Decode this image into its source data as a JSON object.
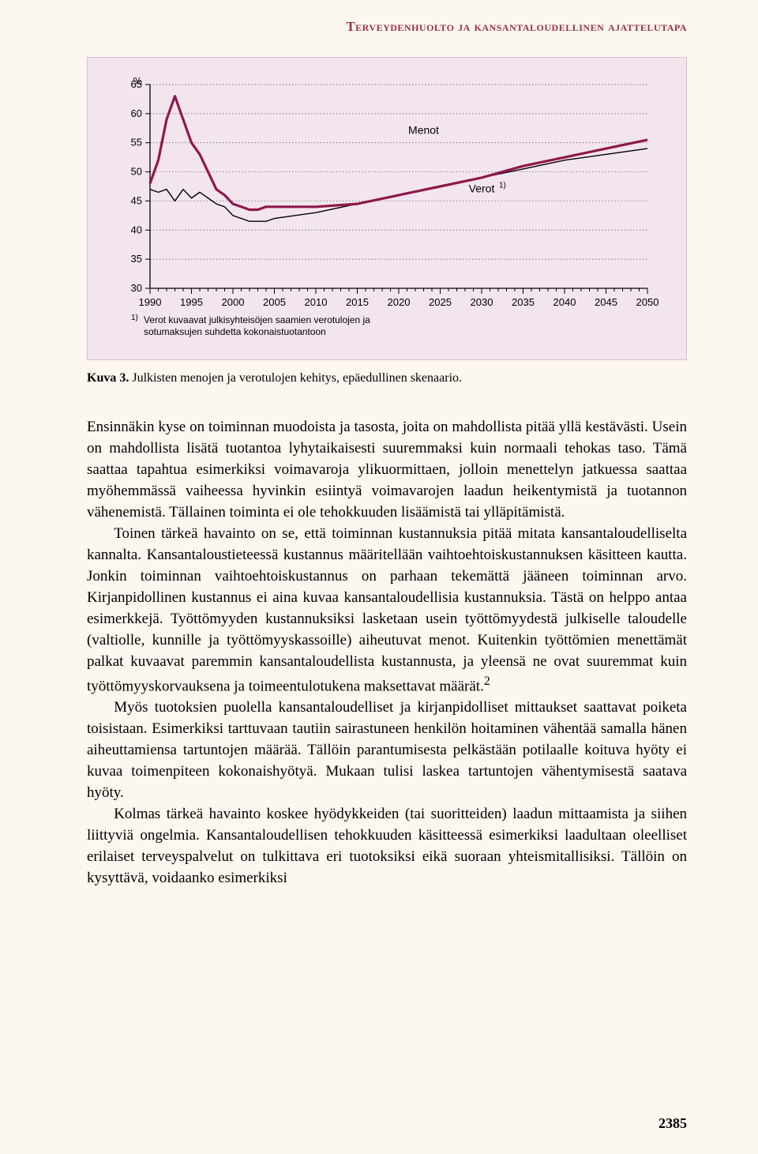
{
  "running_head": "Terveydenhuolto ja kansantaloudellinen ajattelutapa",
  "figure": {
    "type": "line",
    "y_unit": "%",
    "y_ticks": [
      30,
      35,
      40,
      45,
      50,
      55,
      60,
      65
    ],
    "ylim": [
      30,
      65
    ],
    "x_ticks": [
      "1990",
      "1995",
      "2000",
      "2005",
      "2010",
      "2015",
      "2020",
      "2025",
      "2030",
      "2035",
      "2040",
      "2045",
      "2050"
    ],
    "x_years": [
      1990,
      1991,
      1992,
      1993,
      1994,
      1995,
      1996,
      1997,
      1998,
      1999,
      2000,
      2001,
      2002,
      2003,
      2004,
      2005,
      2010,
      2015,
      2020,
      2025,
      2030,
      2035,
      2040,
      2045,
      2050
    ],
    "series": {
      "menot": {
        "label": "Menot",
        "color": "#8f184d",
        "width": 3.2,
        "y": [
          48,
          52,
          59,
          63,
          59,
          55,
          53,
          50,
          47,
          46,
          44.5,
          44,
          43.5,
          43.5,
          44,
          44,
          44,
          44.5,
          46,
          47.5,
          49,
          51,
          52.5,
          54,
          55.5
        ]
      },
      "verot": {
        "label": "Verot",
        "superscript": "1)",
        "color": "#000000",
        "width": 1.4,
        "y": [
          47,
          46.5,
          47,
          45,
          47,
          45.5,
          46.5,
          45.5,
          44.5,
          44,
          42.5,
          42,
          41.5,
          41.5,
          41.5,
          42,
          43,
          44.5,
          46,
          47.5,
          49,
          50.5,
          52,
          53,
          54
        ]
      }
    },
    "colors": {
      "background": "#f3e5ee",
      "plot_bg": "#f3e5ee",
      "gridline": "#555555",
      "axis": "#000000",
      "label": "#000000"
    },
    "label_fontsize": 14,
    "tick_fontsize": 13,
    "footnote_prefix": "1)",
    "footnote": " Verot kuvaavat julkisyhteisöjen saamien verotulojen ja sotumaksujen suhdetta kokonaistuotantoon"
  },
  "caption_label": "Kuva 3.",
  "caption_text": " Julkisten menojen ja verotulojen kehitys, epäedullinen skenaario.",
  "paragraphs": {
    "p1": "Ensinnäkin kyse on toiminnan muodoista ja tasosta, joita on mahdollista pitää yllä kestävästi. Usein on mahdollista lisätä tuotantoa lyhytaikaisesti suuremmaksi kuin normaali tehokas taso. Tämä saattaa tapahtua esimerkiksi voimavaroja ylikuormittaen, jolloin menettelyn jatkuessa saattaa myöhemmässä vaiheessa hyvinkin esiintyä voimavarojen laadun heikentymistä ja tuotannon vähenemistä. Tällainen toiminta ei ole tehokkuuden lisäämistä tai ylläpitämistä.",
    "p2a": "Toinen tärkeä havainto on se, että toiminnan kustannuksia pitää mitata kansantaloudelliselta kannalta. Kansantaloustieteessä kustannus määritellään vaihtoehtoiskustannuksen käsitteen kautta. Jonkin toiminnan vaihtoehtoiskustannus on parhaan tekemättä jääneen toiminnan arvo. Kirjanpidollinen kustannus ei aina kuvaa kansantaloudellisia kustannuksia. Tästä on helppo antaa esimerkkejä. Työttömyyden kustannuksiksi lasketaan usein työttömyydestä julkiselle taloudelle (valtiolle, kunnille ja työttömyyskassoille) aiheutuvat menot. Kuitenkin työttömien menettämät palkat kuvaavat paremmin kansantaloudellista kustannusta, ja yleensä ne ovat suuremmat kuin työttömyyskorvauksena ja toimeentulotukena maksettavat määrät.",
    "p2_sup": "2",
    "p3": "Myös tuotoksien puolella kansantaloudelliset ja kirjanpidolliset mittaukset saattavat poiketa toisistaan. Esimerkiksi tarttuvaan tautiin sairastuneen henkilön hoitaminen vähentää samalla hänen aiheuttamiensa tartuntojen määrää. Tällöin parantumisesta pelkästään potilaalle koituva hyöty ei kuvaa toimenpiteen kokonaishyötyä. Mukaan tulisi laskea tartuntojen vähentymisestä saatava hyöty.",
    "p4": "Kolmas tärkeä havainto koskee hyödykkeiden (tai suoritteiden) laadun mittaamista ja siihen liittyviä ongelmia. Kansantaloudellisen tehokkuuden käsitteessä esimerkiksi laadultaan oleelliset erilaiset terveyspalvelut on tulkittava eri tuotoksiksi eikä suoraan yhteismitallisiksi. Tällöin on kysyttävä, voidaanko esimerkiksi"
  },
  "page_number": "2385"
}
